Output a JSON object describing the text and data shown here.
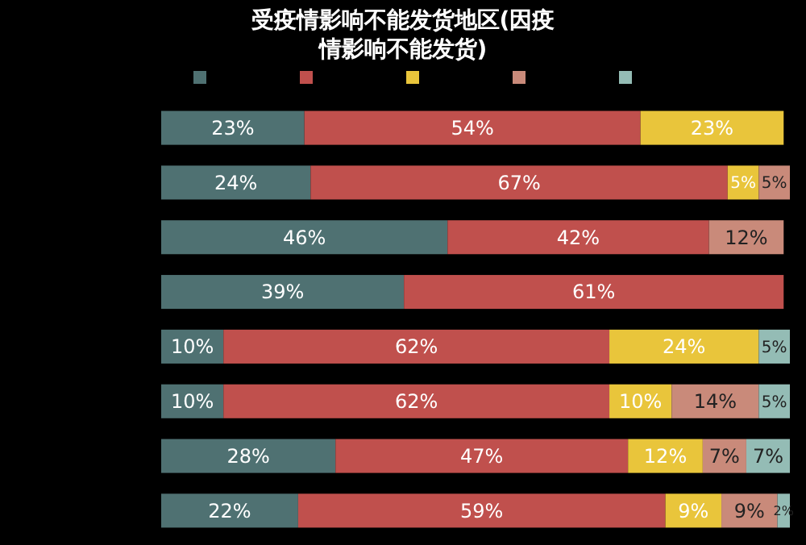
{
  "chart_data": {
    "type": "bar",
    "orientation": "horizontal",
    "stacked": true,
    "title": "受疫情影响不能发货地区(因疫情影响不能发货)",
    "categories": [
      null,
      null,
      null,
      null,
      null,
      null,
      null,
      null
    ],
    "xlim": [
      0,
      101
    ],
    "series": [
      {
        "color": "#4f7172",
        "values": [
          23,
          24,
          46,
          39,
          10,
          10,
          28,
          22
        ],
        "value_labels": [
          "23%",
          "24%",
          "46%",
          "39%",
          "10%",
          "10%",
          "28%",
          "22%"
        ]
      },
      {
        "color": "#c0504d",
        "values": [
          54,
          67,
          42,
          61,
          62,
          62,
          47,
          59
        ],
        "value_labels": [
          "54%",
          "67%",
          "42%",
          "61%",
          "62%",
          "62%",
          "47%",
          "59%"
        ]
      },
      {
        "color": "#e9c53b",
        "values": [
          23,
          5,
          null,
          null,
          24,
          10,
          12,
          9
        ],
        "value_labels": [
          "23%",
          "5%",
          null,
          null,
          "24%",
          "10%",
          "12%",
          "9%"
        ]
      },
      {
        "color": "#c98a7a",
        "values": [
          null,
          5,
          12,
          null,
          null,
          14,
          7,
          9
        ],
        "value_labels": [
          null,
          "5%",
          "12%",
          null,
          null,
          "14%",
          "7%",
          "9%"
        ]
      },
      {
        "color": "#94bcb5",
        "values": [
          null,
          null,
          null,
          null,
          5,
          5,
          7,
          2
        ],
        "value_labels": [
          null,
          null,
          null,
          null,
          "5%",
          "5%",
          "7%",
          "2%"
        ]
      }
    ]
  }
}
